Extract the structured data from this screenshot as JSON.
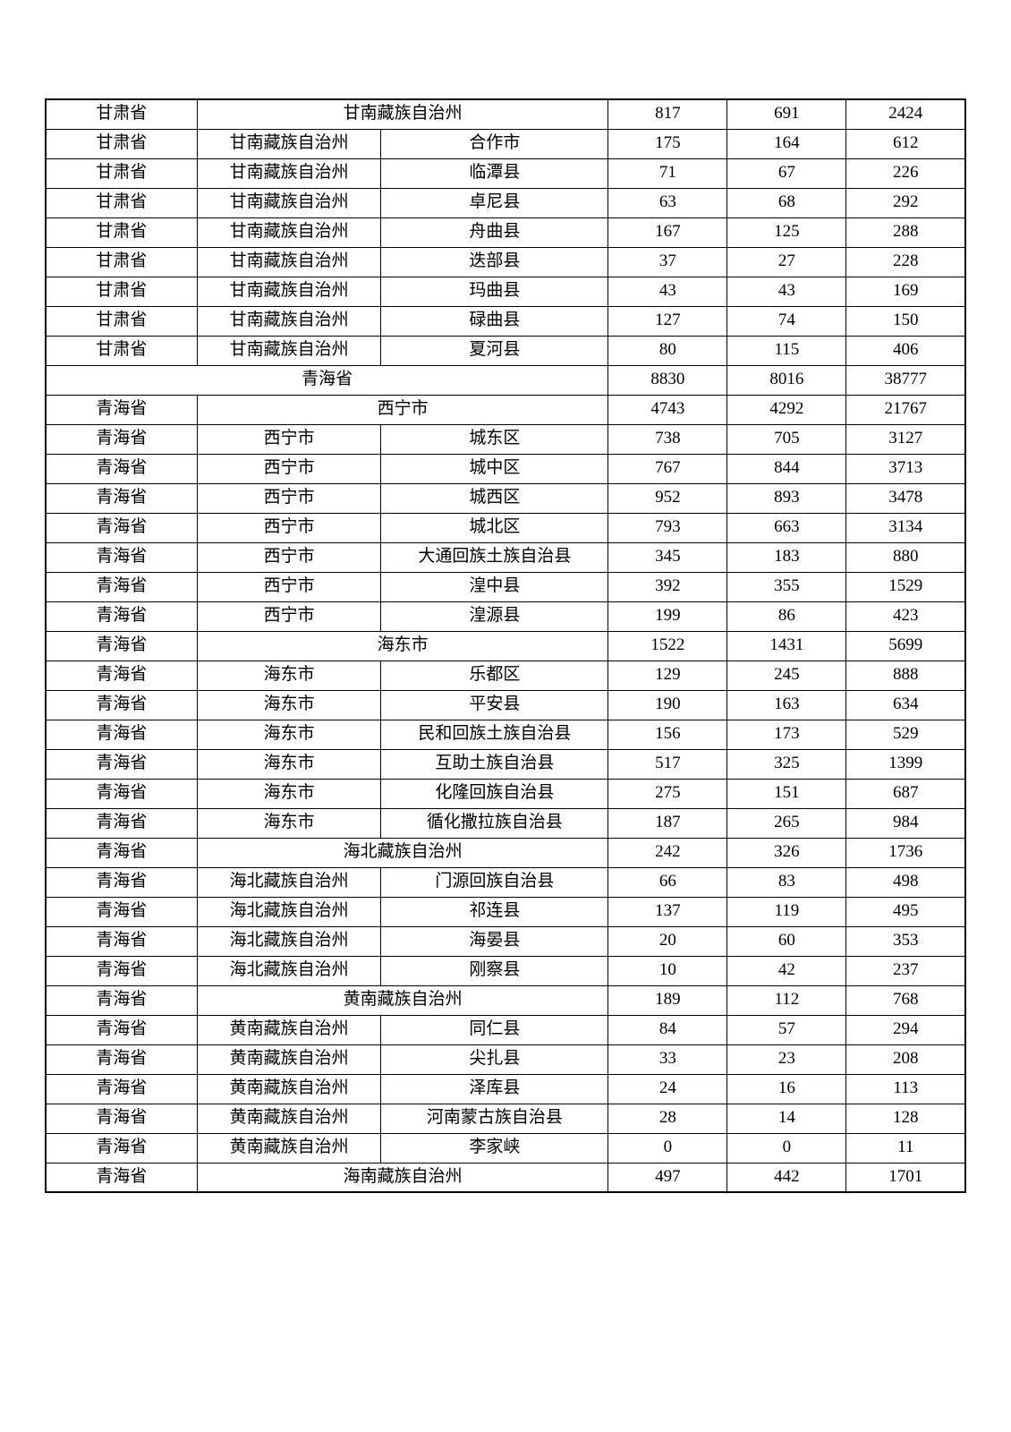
{
  "table": {
    "border_color": "#000000",
    "background_color": "#ffffff",
    "font_size": 19,
    "rows": [
      {
        "type": "city_summary",
        "province": "甘肃省",
        "city_merged": "甘南藏族自治州",
        "v1": "817",
        "v2": "691",
        "v3": "2424"
      },
      {
        "type": "detail",
        "province": "甘肃省",
        "city": "甘南藏族自治州",
        "county": "合作市",
        "v1": "175",
        "v2": "164",
        "v3": "612"
      },
      {
        "type": "detail",
        "province": "甘肃省",
        "city": "甘南藏族自治州",
        "county": "临潭县",
        "v1": "71",
        "v2": "67",
        "v3": "226"
      },
      {
        "type": "detail",
        "province": "甘肃省",
        "city": "甘南藏族自治州",
        "county": "卓尼县",
        "v1": "63",
        "v2": "68",
        "v3": "292"
      },
      {
        "type": "detail",
        "province": "甘肃省",
        "city": "甘南藏族自治州",
        "county": "舟曲县",
        "v1": "167",
        "v2": "125",
        "v3": "288"
      },
      {
        "type": "detail",
        "province": "甘肃省",
        "city": "甘南藏族自治州",
        "county": "迭部县",
        "v1": "37",
        "v2": "27",
        "v3": "228"
      },
      {
        "type": "detail",
        "province": "甘肃省",
        "city": "甘南藏族自治州",
        "county": "玛曲县",
        "v1": "43",
        "v2": "43",
        "v3": "169"
      },
      {
        "type": "detail",
        "province": "甘肃省",
        "city": "甘南藏族自治州",
        "county": "碌曲县",
        "v1": "127",
        "v2": "74",
        "v3": "150"
      },
      {
        "type": "detail",
        "province": "甘肃省",
        "city": "甘南藏族自治州",
        "county": "夏河县",
        "v1": "80",
        "v2": "115",
        "v3": "406"
      },
      {
        "type": "province_summary",
        "province_merged": "青海省",
        "v1": "8830",
        "v2": "8016",
        "v3": "38777"
      },
      {
        "type": "city_summary",
        "province": "青海省",
        "city_merged": "西宁市",
        "v1": "4743",
        "v2": "4292",
        "v3": "21767"
      },
      {
        "type": "detail",
        "province": "青海省",
        "city": "西宁市",
        "county": "城东区",
        "v1": "738",
        "v2": "705",
        "v3": "3127"
      },
      {
        "type": "detail",
        "province": "青海省",
        "city": "西宁市",
        "county": "城中区",
        "v1": "767",
        "v2": "844",
        "v3": "3713"
      },
      {
        "type": "detail",
        "province": "青海省",
        "city": "西宁市",
        "county": "城西区",
        "v1": "952",
        "v2": "893",
        "v3": "3478"
      },
      {
        "type": "detail",
        "province": "青海省",
        "city": "西宁市",
        "county": "城北区",
        "v1": "793",
        "v2": "663",
        "v3": "3134"
      },
      {
        "type": "detail",
        "province": "青海省",
        "city": "西宁市",
        "county": "大通回族土族自治县",
        "v1": "345",
        "v2": "183",
        "v3": "880"
      },
      {
        "type": "detail",
        "province": "青海省",
        "city": "西宁市",
        "county": "湟中县",
        "v1": "392",
        "v2": "355",
        "v3": "1529"
      },
      {
        "type": "detail",
        "province": "青海省",
        "city": "西宁市",
        "county": "湟源县",
        "v1": "199",
        "v2": "86",
        "v3": "423"
      },
      {
        "type": "city_summary",
        "province": "青海省",
        "city_merged": "海东市",
        "v1": "1522",
        "v2": "1431",
        "v3": "5699"
      },
      {
        "type": "detail",
        "province": "青海省",
        "city": "海东市",
        "county": "乐都区",
        "v1": "129",
        "v2": "245",
        "v3": "888"
      },
      {
        "type": "detail",
        "province": "青海省",
        "city": "海东市",
        "county": "平安县",
        "v1": "190",
        "v2": "163",
        "v3": "634"
      },
      {
        "type": "detail",
        "province": "青海省",
        "city": "海东市",
        "county": "民和回族土族自治县",
        "v1": "156",
        "v2": "173",
        "v3": "529"
      },
      {
        "type": "detail",
        "province": "青海省",
        "city": "海东市",
        "county": "互助土族自治县",
        "v1": "517",
        "v2": "325",
        "v3": "1399"
      },
      {
        "type": "detail",
        "province": "青海省",
        "city": "海东市",
        "county": "化隆回族自治县",
        "v1": "275",
        "v2": "151",
        "v3": "687"
      },
      {
        "type": "detail",
        "province": "青海省",
        "city": "海东市",
        "county": "循化撒拉族自治县",
        "v1": "187",
        "v2": "265",
        "v3": "984"
      },
      {
        "type": "city_summary",
        "province": "青海省",
        "city_merged": "海北藏族自治州",
        "v1": "242",
        "v2": "326",
        "v3": "1736"
      },
      {
        "type": "detail",
        "province": "青海省",
        "city": "海北藏族自治州",
        "county": "门源回族自治县",
        "v1": "66",
        "v2": "83",
        "v3": "498"
      },
      {
        "type": "detail",
        "province": "青海省",
        "city": "海北藏族自治州",
        "county": "祁连县",
        "v1": "137",
        "v2": "119",
        "v3": "495"
      },
      {
        "type": "detail",
        "province": "青海省",
        "city": "海北藏族自治州",
        "county": "海晏县",
        "v1": "20",
        "v2": "60",
        "v3": "353"
      },
      {
        "type": "detail",
        "province": "青海省",
        "city": "海北藏族自治州",
        "county": "刚察县",
        "v1": "10",
        "v2": "42",
        "v3": "237"
      },
      {
        "type": "city_summary",
        "province": "青海省",
        "city_merged": "黄南藏族自治州",
        "v1": "189",
        "v2": "112",
        "v3": "768"
      },
      {
        "type": "detail",
        "province": "青海省",
        "city": "黄南藏族自治州",
        "county": "同仁县",
        "v1": "84",
        "v2": "57",
        "v3": "294"
      },
      {
        "type": "detail",
        "province": "青海省",
        "city": "黄南藏族自治州",
        "county": "尖扎县",
        "v1": "33",
        "v2": "23",
        "v3": "208"
      },
      {
        "type": "detail",
        "province": "青海省",
        "city": "黄南藏族自治州",
        "county": "泽库县",
        "v1": "24",
        "v2": "16",
        "v3": "113"
      },
      {
        "type": "detail",
        "province": "青海省",
        "city": "黄南藏族自治州",
        "county": "河南蒙古族自治县",
        "v1": "28",
        "v2": "14",
        "v3": "128"
      },
      {
        "type": "detail",
        "province": "青海省",
        "city": "黄南藏族自治州",
        "county": "李家峡",
        "v1": "0",
        "v2": "0",
        "v3": "11"
      },
      {
        "type": "city_summary",
        "province": "青海省",
        "city_merged": "海南藏族自治州",
        "v1": "497",
        "v2": "442",
        "v3": "1701"
      }
    ]
  }
}
